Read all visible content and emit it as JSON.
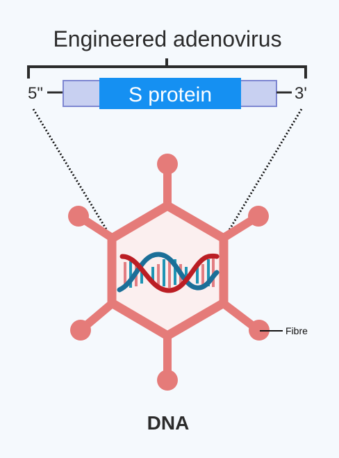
{
  "title": "Engineered adenovirus",
  "construct": {
    "five_prime": "5\"",
    "three_prime": "3'",
    "gene_label": "S protein"
  },
  "labels": {
    "fibre": "Fibre",
    "dna": "DNA"
  },
  "colors": {
    "background": "#f5f9fd",
    "capsid": "#e57b79",
    "capsid_fill": "#fbefef",
    "gene_box": "#1590f2",
    "flank_box": "#c8d0f1",
    "flank_border": "#7d86d1",
    "dna_red": "#bb1e24",
    "dna_blue": "#1b6f98",
    "dna_pink": "#e27d82",
    "dna_teal": "#1e94b4",
    "dark_text": "#2b2b2b"
  }
}
